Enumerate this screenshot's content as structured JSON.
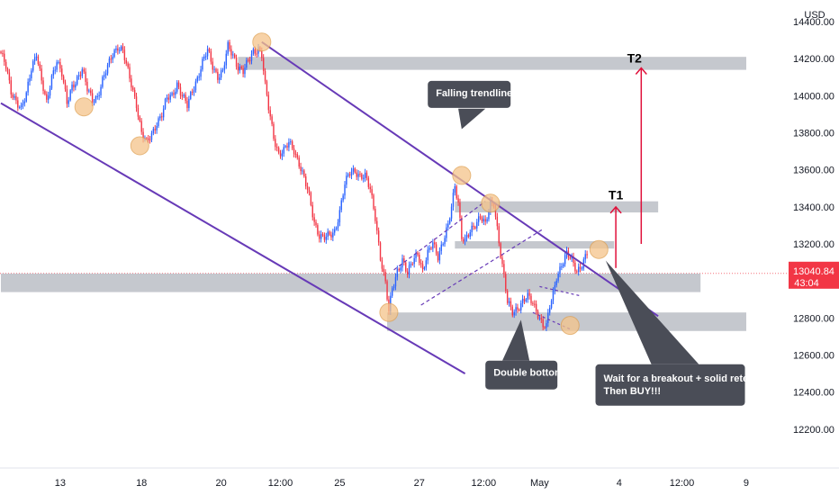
{
  "chart_data": {
    "type": "candlestick",
    "currency_label": "USD",
    "ylim": [
      12000,
      14600
    ],
    "y_ticks": [
      "14400.00",
      "14200.00",
      "14000.00",
      "13800.00",
      "13600.00",
      "13400.00",
      "13200.00",
      "13000.00",
      "12800.00",
      "12600.00",
      "12400.00",
      "12200.00"
    ],
    "y_tick_values": [
      14400,
      14200,
      14000,
      13800,
      13600,
      13400,
      13200,
      13000,
      12800,
      12600,
      12400,
      12200
    ],
    "x_ticks": [
      "13",
      "18",
      "20",
      "12:00",
      "25",
      "27",
      "12:00",
      "May",
      "4",
      "12:00",
      "9"
    ],
    "last_price": "13040.84",
    "countdown": "43:04",
    "price_path": [
      [
        0,
        14230
      ],
      [
        3,
        14150
      ],
      [
        6,
        14020
      ],
      [
        9,
        13980
      ],
      [
        12,
        13930
      ],
      [
        15,
        14000
      ],
      [
        18,
        14150
      ],
      [
        21,
        14240
      ],
      [
        24,
        14080
      ],
      [
        27,
        13950
      ],
      [
        30,
        14100
      ],
      [
        33,
        14200
      ],
      [
        36,
        14120
      ],
      [
        39,
        13950
      ],
      [
        42,
        14050
      ],
      [
        45,
        14100
      ],
      [
        48,
        14140
      ],
      [
        51,
        14030
      ],
      [
        54,
        13980
      ],
      [
        57,
        14000
      ],
      [
        60,
        14080
      ],
      [
        63,
        14150
      ],
      [
        66,
        14230
      ],
      [
        69,
        14270
      ],
      [
        72,
        14240
      ],
      [
        74,
        14160
      ],
      [
        77,
        14060
      ],
      [
        80,
        13960
      ],
      [
        83,
        13800
      ],
      [
        86,
        13740
      ],
      [
        89,
        13790
      ],
      [
        92,
        13860
      ],
      [
        95,
        13900
      ],
      [
        98,
        13980
      ],
      [
        101,
        14000
      ],
      [
        104,
        14070
      ],
      [
        107,
        14000
      ],
      [
        110,
        13940
      ],
      [
        113,
        14030
      ],
      [
        116,
        14100
      ],
      [
        119,
        14180
      ],
      [
        122,
        14240
      ],
      [
        125,
        14160
      ],
      [
        128,
        14110
      ],
      [
        131,
        14130
      ],
      [
        134,
        14260
      ],
      [
        137,
        14220
      ],
      [
        140,
        14160
      ],
      [
        143,
        14130
      ],
      [
        146,
        14180
      ],
      [
        149,
        14240
      ],
      [
        152,
        14260
      ],
      [
        154,
        14220
      ],
      [
        156,
        14050
      ],
      [
        158,
        13930
      ],
      [
        161,
        13780
      ],
      [
        164,
        13690
      ],
      [
        167,
        13700
      ],
      [
        170,
        13740
      ],
      [
        173,
        13710
      ],
      [
        176,
        13640
      ],
      [
        179,
        13550
      ],
      [
        182,
        13450
      ],
      [
        185,
        13320
      ],
      [
        188,
        13250
      ],
      [
        191,
        13230
      ],
      [
        194,
        13240
      ],
      [
        197,
        13270
      ],
      [
        200,
        13380
      ],
      [
        203,
        13520
      ],
      [
        206,
        13580
      ],
      [
        209,
        13600
      ],
      [
        212,
        13570
      ],
      [
        215,
        13560
      ],
      [
        218,
        13490
      ],
      [
        221,
        13350
      ],
      [
        224,
        13130
      ],
      [
        227,
        12980
      ],
      [
        229,
        12830
      ],
      [
        231,
        12960
      ],
      [
        234,
        13060
      ],
      [
        237,
        13110
      ],
      [
        240,
        13030
      ],
      [
        243,
        13110
      ],
      [
        246,
        13160
      ],
      [
        249,
        13050
      ],
      [
        252,
        13140
      ],
      [
        255,
        13210
      ],
      [
        258,
        13140
      ],
      [
        261,
        13210
      ],
      [
        264,
        13290
      ],
      [
        266,
        13400
      ],
      [
        268,
        13520
      ],
      [
        270,
        13430
      ],
      [
        272,
        13240
      ],
      [
        274,
        13210
      ],
      [
        277,
        13260
      ],
      [
        280,
        13310
      ],
      [
        283,
        13360
      ],
      [
        286,
        13300
      ],
      [
        289,
        13410
      ],
      [
        291,
        13420
      ],
      [
        293,
        13290
      ],
      [
        295,
        13150
      ],
      [
        297,
        13020
      ],
      [
        299,
        12880
      ],
      [
        302,
        12830
      ],
      [
        305,
        12860
      ],
      [
        308,
        12890
      ],
      [
        311,
        12910
      ],
      [
        314,
        12880
      ],
      [
        317,
        12830
      ],
      [
        320,
        12760
      ],
      [
        322,
        12750
      ],
      [
        324,
        12860
      ],
      [
        326,
        12930
      ],
      [
        328,
        13030
      ],
      [
        331,
        13090
      ],
      [
        334,
        13140
      ],
      [
        337,
        13110
      ],
      [
        340,
        13060
      ],
      [
        343,
        13090
      ],
      [
        346,
        13140
      ]
    ],
    "annotations": {
      "falling_trendline_label": "Falling trendline",
      "double_bottom_label": "Double bottom",
      "instruction_line1": "Wait for a breakout + solid retest",
      "instruction_line2": "Then BUY!!!",
      "target1_label": "T1",
      "target2_label": "T2"
    },
    "zones": [
      {
        "name": "t2-resistance",
        "low": 14140,
        "high": 14210,
        "from_i": 140,
        "to_i": 440
      },
      {
        "name": "t1-resistance",
        "low": 13370,
        "high": 13430,
        "from_i": 268,
        "to_i": 388
      },
      {
        "name": "breakout-level",
        "low": 13175,
        "high": 13215,
        "from_i": 268,
        "to_i": 362
      },
      {
        "name": "support-zone",
        "low": 12940,
        "high": 13040,
        "from_i": 0,
        "to_i": 413
      },
      {
        "name": "lower-support",
        "low": 12730,
        "high": 12830,
        "from_i": 228,
        "to_i": 440
      }
    ],
    "channel": {
      "upper": [
        [
          154,
          14290
        ],
        [
          388,
          12810
        ]
      ],
      "lower": [
        [
          0,
          13960
        ],
        [
          274,
          12500
        ]
      ]
    },
    "grid": false,
    "legend": "none"
  },
  "colors": {
    "up": "#2962ff",
    "down": "#f23645",
    "channel": "#673ab7",
    "zone": "#b2b5be",
    "circle_fill": "#f5c48a",
    "circle_stroke": "#e0a050",
    "callout_bg": "#4a4d57",
    "target_arrow": "#e0103a",
    "price_tag": "#f23645"
  }
}
